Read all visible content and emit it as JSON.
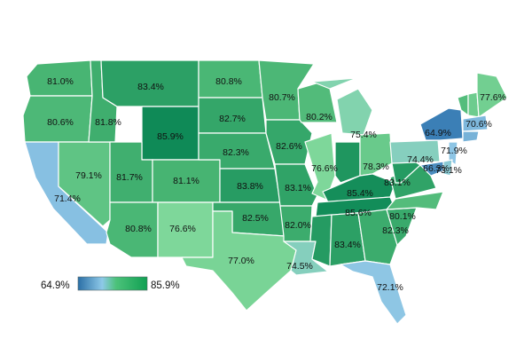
{
  "legend": {
    "min_label": "64.9%",
    "max_label": "85.9%",
    "min_value": 64.9,
    "max_value": 85.9,
    "gradient_colors": [
      "#2b6fa6",
      "#8ec9e8",
      "#4cc27a",
      "#10a052"
    ]
  },
  "color_scale": {
    "stops": [
      {
        "value": 64.9,
        "color": "#3b7fb6"
      },
      {
        "value": 72.0,
        "color": "#8ec6e6"
      },
      {
        "value": 76.6,
        "color": "#7ed79a"
      },
      {
        "value": 81.0,
        "color": "#48b573"
      },
      {
        "value": 85.9,
        "color": "#0f8a57"
      }
    ]
  },
  "states": [
    {
      "name": "Washington",
      "label": "81.0%",
      "value": 81.0
    },
    {
      "name": "Oregon",
      "label": "80.6%",
      "value": 80.6
    },
    {
      "name": "California",
      "label": "71.4%",
      "value": 71.4
    },
    {
      "name": "Nevada",
      "label": "79.1%",
      "value": 79.1
    },
    {
      "name": "Idaho",
      "label": "81.8%",
      "value": 81.8
    },
    {
      "name": "Montana",
      "label": "83.4%",
      "value": 83.4
    },
    {
      "name": "Wyoming",
      "label": "85.9%",
      "value": 85.9
    },
    {
      "name": "Utah",
      "label": "81.7%",
      "value": 81.7
    },
    {
      "name": "Colorado",
      "label": "81.1%",
      "value": 81.1
    },
    {
      "name": "Arizona",
      "label": "80.8%",
      "value": 80.8
    },
    {
      "name": "New Mexico",
      "label": "76.6%",
      "value": 76.6
    },
    {
      "name": "North Dakota",
      "label": "80.8%",
      "value": 80.8
    },
    {
      "name": "South Dakota",
      "label": "82.7%",
      "value": 82.7
    },
    {
      "name": "Nebraska",
      "label": "82.3%",
      "value": 82.3
    },
    {
      "name": "Kansas",
      "label": "83.8%",
      "value": 83.8
    },
    {
      "name": "Oklahoma",
      "label": "82.5%",
      "value": 82.5
    },
    {
      "name": "Texas",
      "label": "77.0%",
      "value": 77.0
    },
    {
      "name": "Minnesota",
      "label": "80.7%",
      "value": 80.7
    },
    {
      "name": "Iowa",
      "label": "82.6%",
      "value": 82.6
    },
    {
      "name": "Missouri",
      "label": "83.1%",
      "value": 83.1
    },
    {
      "name": "Arkansas",
      "label": "82.0%",
      "value": 82.0
    },
    {
      "name": "Louisiana",
      "label": "74.5%",
      "value": 74.5
    },
    {
      "name": "Wisconsin",
      "label": "80.2%",
      "value": 80.2
    },
    {
      "name": "Illinois",
      "label": "76.6%",
      "value": 76.6
    },
    {
      "name": "Michigan",
      "label": "75.4%",
      "value": 75.4
    },
    {
      "name": "Indiana",
      "label": "",
      "value": 84.5
    },
    {
      "name": "Ohio",
      "label": "78.3%",
      "value": 78.3
    },
    {
      "name": "Kentucky",
      "label": "85.4%",
      "value": 85.4
    },
    {
      "name": "Tennessee",
      "label": "85.6%",
      "value": 85.6
    },
    {
      "name": "Mississippi",
      "label": "",
      "value": 84.0
    },
    {
      "name": "Alabama",
      "label": "83.4%",
      "value": 83.4
    },
    {
      "name": "Georgia",
      "label": "",
      "value": 82.0
    },
    {
      "name": "Florida",
      "label": "72.1%",
      "value": 72.1
    },
    {
      "name": "South Carolina",
      "label": "82.3%",
      "value": 82.3
    },
    {
      "name": "North Carolina",
      "label": "80.1%",
      "value": 80.1
    },
    {
      "name": "Virginia",
      "label": "83.1%",
      "value": 83.1
    },
    {
      "name": "West Virginia",
      "label": "",
      "value": 84.0
    },
    {
      "name": "Pennsylvania",
      "label": "74.4%",
      "value": 74.4
    },
    {
      "name": "New York",
      "label": "64.9%",
      "value": 64.9
    },
    {
      "name": "Vermont",
      "label": "",
      "value": 80.0
    },
    {
      "name": "New Hampshire",
      "label": "",
      "value": 78.0
    },
    {
      "name": "Maine",
      "label": "77.6%",
      "value": 77.6
    },
    {
      "name": "Massachusetts",
      "label": "70.6%",
      "value": 70.6
    },
    {
      "name": "Connecticut",
      "label": "",
      "value": 70.0
    },
    {
      "name": "New Jersey",
      "label": "71.9%",
      "value": 71.9
    },
    {
      "name": "Maryland",
      "label": "66.3%",
      "value": 66.3
    },
    {
      "name": "Delaware",
      "label": "73.1%",
      "value": 73.1
    }
  ]
}
